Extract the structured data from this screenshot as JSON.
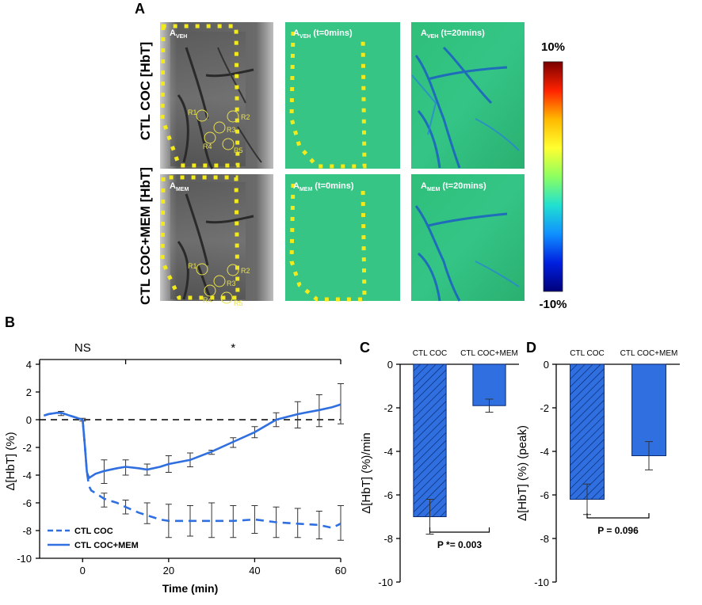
{
  "panel_labels": {
    "a": "A",
    "b": "B",
    "c": "C",
    "d": "D"
  },
  "panel_a": {
    "row_labels": [
      "CTL COC [HbT]",
      "CTL COC+MEM [HbT]"
    ],
    "image_overlays": [
      [
        "A",
        "VEH",
        ""
      ],
      [
        "A",
        "VEH",
        " (t=0mins)"
      ],
      [
        "A",
        "VEH",
        " (t=20mins)"
      ],
      [
        "A",
        "MEM",
        ""
      ],
      [
        "A",
        "MEM",
        " (t=0mins)"
      ],
      [
        "A",
        "MEM",
        " (t=20mins)"
      ]
    ],
    "roi_labels": [
      "R1",
      "R2",
      "R3",
      "R4",
      "R5"
    ],
    "colorbar": {
      "max_label": "10%",
      "min_label": "-10%",
      "colors": [
        "#7a0000",
        "#ff2200",
        "#ffb800",
        "#ffff30",
        "#8cff60",
        "#20e0d0",
        "#1090ff",
        "#0020e0",
        "#00007a"
      ]
    }
  },
  "chart_data": [
    {
      "id": "B",
      "type": "line",
      "title": "",
      "xlabel": "Time (min)",
      "ylabel": "Δ[HbT] (%)",
      "xlim": [
        -10,
        60
      ],
      "ylim": [
        -10,
        4
      ],
      "xticks": [
        0,
        20,
        40,
        60
      ],
      "yticks": [
        -10,
        -8,
        -6,
        -4,
        -2,
        0,
        2,
        4
      ],
      "reference_line": {
        "y": 0,
        "style": "dashed",
        "color": "#000000"
      },
      "significance": [
        {
          "label": "NS",
          "x_range": [
            -10,
            10
          ]
        },
        {
          "label": "*",
          "x_range": [
            10,
            60
          ]
        }
      ],
      "legend": [
        "CTL COC",
        "CTL COC+MEM"
      ],
      "legend_position": "bottom-left",
      "series": [
        {
          "name": "CTL COC",
          "style": "dashed",
          "color": "#2f6fe0",
          "x": [
            -9,
            -8,
            -6,
            -5,
            -4,
            -3,
            -2,
            -1,
            0,
            0.5,
            1,
            1.5,
            2,
            3,
            5,
            8,
            10,
            13,
            15,
            18,
            20,
            25,
            30,
            35,
            40,
            45,
            50,
            55,
            58,
            60
          ],
          "y": [
            0.3,
            0.4,
            0.5,
            0.5,
            0.4,
            0.3,
            0.2,
            0.1,
            0.0,
            -1.8,
            -3.8,
            -4.8,
            -5.1,
            -5.3,
            -5.7,
            -6.0,
            -6.3,
            -6.7,
            -6.9,
            -7.2,
            -7.3,
            -7.3,
            -7.3,
            -7.3,
            -7.2,
            -7.4,
            -7.5,
            -7.6,
            -7.8,
            -7.5
          ]
        },
        {
          "name": "CTL COC+MEM",
          "style": "solid",
          "color": "#2f6fe0",
          "x": [
            -9,
            -8,
            -6,
            -5,
            -4,
            -3,
            -2,
            -1,
            0,
            0.5,
            1,
            1.5,
            2,
            3,
            5,
            8,
            10,
            13,
            15,
            18,
            20,
            25,
            30,
            35,
            40,
            45,
            50,
            55,
            58,
            60
          ],
          "y": [
            0.3,
            0.4,
            0.5,
            0.5,
            0.4,
            0.3,
            0.2,
            0.1,
            0.0,
            -1.8,
            -3.8,
            -4.2,
            -4.1,
            -3.9,
            -3.7,
            -3.5,
            -3.4,
            -3.5,
            -3.6,
            -3.4,
            -3.2,
            -2.9,
            -2.3,
            -1.6,
            -0.9,
            0.0,
            0.4,
            0.7,
            0.9,
            1.1
          ]
        }
      ],
      "error_bars": [
        {
          "x": -5,
          "low": 0.3,
          "high": 0.6
        },
        {
          "x": 0,
          "low": -0.1,
          "high": 0.1
        },
        {
          "x": 5,
          "low": -6.3,
          "high": -5.3
        },
        {
          "x": 5,
          "low": -4.6,
          "high": -2.9
        },
        {
          "x": 10,
          "low": -6.8,
          "high": -5.8
        },
        {
          "x": 10,
          "low": -4.0,
          "high": -2.9
        },
        {
          "x": 15,
          "low": -7.5,
          "high": -6.0
        },
        {
          "x": 15,
          "low": -4.0,
          "high": -3.2
        },
        {
          "x": 20,
          "low": -8.5,
          "high": -6.1
        },
        {
          "x": 20,
          "low": -3.8,
          "high": -2.6
        },
        {
          "x": 25,
          "low": -8.4,
          "high": -6.2
        },
        {
          "x": 25,
          "low": -3.4,
          "high": -2.4
        },
        {
          "x": 30,
          "low": -8.5,
          "high": -6.0
        },
        {
          "x": 30,
          "low": -2.5,
          "high": -2.2
        },
        {
          "x": 35,
          "low": -8.5,
          "high": -6.2
        },
        {
          "x": 35,
          "low": -2.0,
          "high": -1.3
        },
        {
          "x": 40,
          "low": -8.2,
          "high": -6.2
        },
        {
          "x": 40,
          "low": -1.3,
          "high": -0.5
        },
        {
          "x": 45,
          "low": -8.5,
          "high": -6.3
        },
        {
          "x": 45,
          "low": -0.5,
          "high": 0.5
        },
        {
          "x": 50,
          "low": -8.5,
          "high": -6.4
        },
        {
          "x": 50,
          "low": -0.6,
          "high": 1.3
        },
        {
          "x": 55,
          "low": -8.6,
          "high": -6.6
        },
        {
          "x": 55,
          "low": -0.5,
          "high": 1.8
        },
        {
          "x": 60,
          "low": -8.7,
          "high": -6.2
        },
        {
          "x": 60,
          "low": -0.3,
          "high": 2.6
        }
      ]
    },
    {
      "id": "C",
      "type": "bar",
      "title": "",
      "xlabel": "",
      "ylabel": "Δ[HbT] (%)/min",
      "ylim": [
        -10,
        0
      ],
      "yticks": [
        -10,
        -8,
        -6,
        -4,
        -2,
        0
      ],
      "categories": [
        "CTL COC",
        "CTL COC+MEM"
      ],
      "values": [
        -7.0,
        -1.9
      ],
      "errors": [
        0.8,
        0.3
      ],
      "hatched": [
        true,
        false
      ],
      "color": "#2f6fe0",
      "annotation": "P *= 0.003"
    },
    {
      "id": "D",
      "type": "bar",
      "title": "",
      "xlabel": "",
      "ylabel": "Δ[HbT] (%) (peak)",
      "ylim": [
        -10,
        0
      ],
      "yticks": [
        -10,
        -8,
        -6,
        -4,
        -2,
        0
      ],
      "categories": [
        "CTL COC",
        "CTL COC+MEM"
      ],
      "values": [
        -6.2,
        -4.2
      ],
      "errors": [
        0.7,
        0.65
      ],
      "hatched": [
        true,
        false
      ],
      "color": "#2f6fe0",
      "annotation": "P = 0.096"
    }
  ]
}
